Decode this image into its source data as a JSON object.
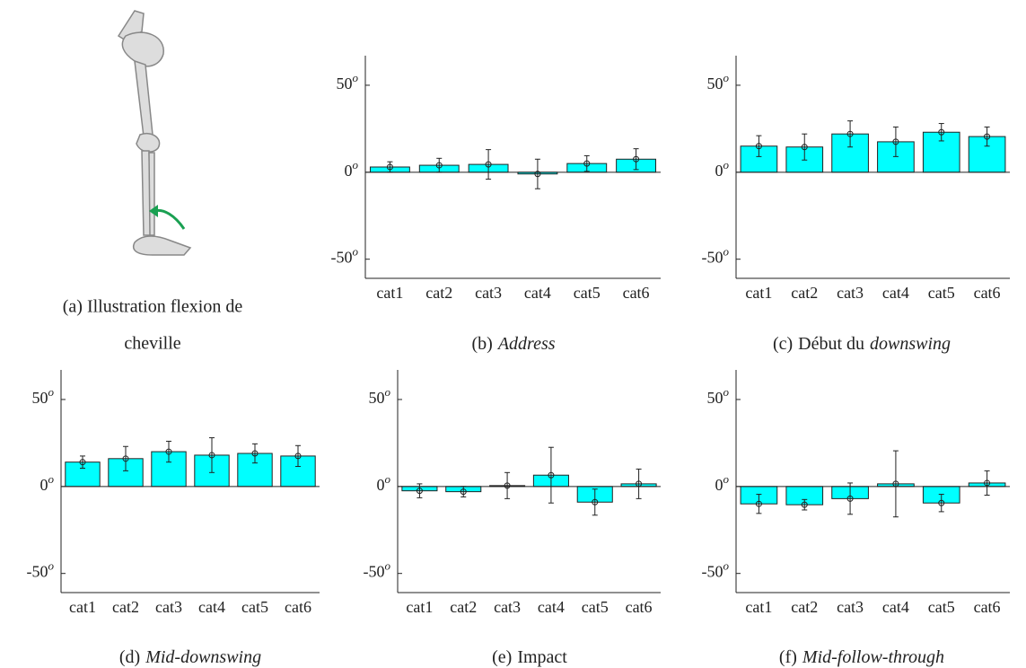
{
  "illustration": {
    "caption_lines": [
      "(a) Illustration flexion de",
      "cheville"
    ]
  },
  "chart_data": [
    {
      "type": "bar",
      "caption_label": "(b)",
      "title_parts": [
        {
          "text": "Address",
          "italic": true
        }
      ],
      "categories": [
        "cat1",
        "cat2",
        "cat3",
        "cat4",
        "cat5",
        "cat6"
      ],
      "values": [
        3,
        4,
        4.5,
        -1,
        5,
        7.5
      ],
      "errors": [
        3,
        4,
        8.5,
        8.5,
        4.5,
        6
      ],
      "color": "#00ffff",
      "ylim": [
        -61,
        67
      ],
      "yticks": [
        -50,
        0,
        50
      ],
      "y_unit": "o"
    },
    {
      "type": "bar",
      "caption_label": "(c)",
      "title_parts": [
        {
          "text": "Début du",
          "italic": false
        },
        {
          "text": "downswing",
          "italic": true
        }
      ],
      "categories": [
        "cat1",
        "cat2",
        "cat3",
        "cat4",
        "cat5",
        "cat6"
      ],
      "values": [
        15,
        14.5,
        22,
        17.5,
        23,
        20.5
      ],
      "errors": [
        6,
        7.5,
        7.5,
        8.5,
        5,
        5.5
      ],
      "color": "#00ffff",
      "ylim": [
        -61,
        67
      ],
      "yticks": [
        -50,
        0,
        50
      ],
      "y_unit": "o"
    },
    {
      "type": "bar",
      "caption_label": "(d)",
      "title_parts": [
        {
          "text": "Mid-downswing",
          "italic": true
        }
      ],
      "categories": [
        "cat1",
        "cat2",
        "cat3",
        "cat4",
        "cat5",
        "cat6"
      ],
      "values": [
        14,
        16,
        20,
        18,
        19,
        17.5
      ],
      "errors": [
        3.5,
        7,
        6,
        10,
        5.5,
        6
      ],
      "color": "#00ffff",
      "ylim": [
        -61,
        67
      ],
      "yticks": [
        -50,
        0,
        50
      ],
      "y_unit": "o"
    },
    {
      "type": "bar",
      "caption_label": "(e)",
      "title_parts": [
        {
          "text": "Impact",
          "italic": false
        }
      ],
      "categories": [
        "cat1",
        "cat2",
        "cat3",
        "cat4",
        "cat5",
        "cat6"
      ],
      "values": [
        -2.5,
        -3,
        0.5,
        6.5,
        -9,
        1.5
      ],
      "errors": [
        4,
        3,
        7.5,
        16,
        7.5,
        8.5
      ],
      "color": "#00ffff",
      "ylim": [
        -61,
        67
      ],
      "yticks": [
        -50,
        0,
        50
      ],
      "y_unit": "o"
    },
    {
      "type": "bar",
      "caption_label": "(f)",
      "title_parts": [
        {
          "text": "Mid-follow-through",
          "italic": true
        }
      ],
      "categories": [
        "cat1",
        "cat2",
        "cat3",
        "cat4",
        "cat5",
        "cat6"
      ],
      "values": [
        -10,
        -10.5,
        -7,
        1.5,
        -9.5,
        2
      ],
      "errors": [
        5.5,
        3,
        9,
        19,
        5,
        7
      ],
      "color": "#00ffff",
      "ylim": [
        -61,
        67
      ],
      "yticks": [
        -50,
        0,
        50
      ],
      "y_unit": "o"
    }
  ]
}
